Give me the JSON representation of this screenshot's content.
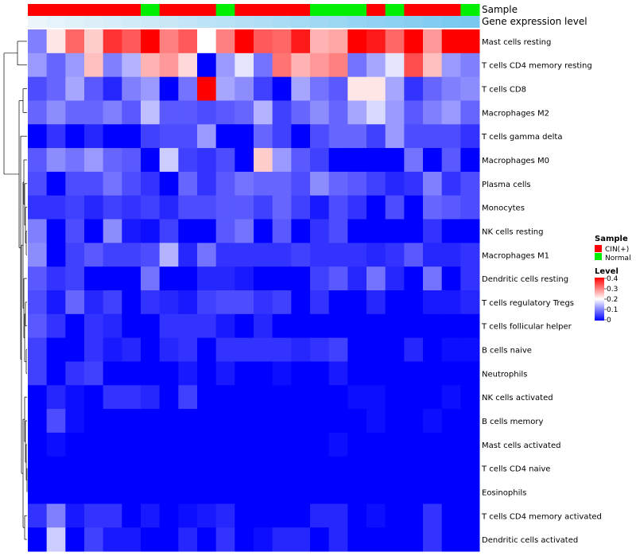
{
  "chart_data": {
    "type": "heatmap",
    "title": "",
    "annotation_tracks": [
      {
        "name": "Sample",
        "values": [
          "CIN(+)",
          "CIN(+)",
          "CIN(+)",
          "CIN(+)",
          "CIN(+)",
          "CIN(+)",
          "Normal",
          "CIN(+)",
          "CIN(+)",
          "CIN(+)",
          "Normal",
          "CIN(+)",
          "CIN(+)",
          "CIN(+)",
          "CIN(+)",
          "Normal",
          "Normal",
          "Normal",
          "CIN(+)",
          "Normal",
          "CIN(+)",
          "CIN(+)",
          "CIN(+)",
          "Normal"
        ]
      },
      {
        "name": "Gene expression level"
      }
    ],
    "rows": [
      "Mast cells resting",
      "T cells CD4 memory resting",
      "T cells CD8",
      "Macrophages M2",
      "T cells gamma delta",
      "Macrophages M0",
      "Plasma cells",
      "Monocytes",
      "NK cells resting",
      "Macrophages M1",
      "Dendritic cells resting",
      "T cells regulatory  Tregs",
      "T cells follicular helper",
      "B cells naive",
      "Neutrophils",
      "NK cells activated",
      "B cells memory",
      "Mast cells activated",
      "T cells CD4 naive",
      "Eosinophils",
      "T cells CD4 memory activated",
      "Dendritic cells activated"
    ],
    "values": [
      [
        0.1,
        0.22,
        0.32,
        0.24,
        0.36,
        0.33,
        0.4,
        0.3,
        0.33,
        0.2,
        0.3,
        0.4,
        0.33,
        0.32,
        0.38,
        0.26,
        0.27,
        0.4,
        0.38,
        0.32,
        0.4,
        0.28,
        0.4,
        0.4
      ],
      [
        0.12,
        0.08,
        0.12,
        0.25,
        0.1,
        0.14,
        0.26,
        0.28,
        0.23,
        0.0,
        0.12,
        0.18,
        0.09,
        0.31,
        0.26,
        0.28,
        0.3,
        0.09,
        0.13,
        0.18,
        0.34,
        0.25,
        0.12,
        0.1
      ],
      [
        0.06,
        0.08,
        0.13,
        0.07,
        0.03,
        0.1,
        0.12,
        0.0,
        0.09,
        0.4,
        0.13,
        0.11,
        0.05,
        0.0,
        0.13,
        0.09,
        0.07,
        0.22,
        0.22,
        0.13,
        0.04,
        0.08,
        0.1,
        0.11
      ],
      [
        0.08,
        0.11,
        0.08,
        0.08,
        0.1,
        0.07,
        0.15,
        0.07,
        0.07,
        0.06,
        0.07,
        0.08,
        0.14,
        0.05,
        0.08,
        0.11,
        0.08,
        0.13,
        0.17,
        0.12,
        0.07,
        0.1,
        0.12,
        0.08
      ],
      [
        0.0,
        0.04,
        0.0,
        0.03,
        0.0,
        0.0,
        0.05,
        0.06,
        0.06,
        0.12,
        0.0,
        0.0,
        0.08,
        0.05,
        0.0,
        0.06,
        0.08,
        0.08,
        0.05,
        0.12,
        0.06,
        0.06,
        0.06,
        0.04
      ],
      [
        0.07,
        0.11,
        0.09,
        0.12,
        0.08,
        0.07,
        0.0,
        0.16,
        0.05,
        0.04,
        0.06,
        0.0,
        0.24,
        0.12,
        0.07,
        0.05,
        0.0,
        0.0,
        0.0,
        0.0,
        0.09,
        0.0,
        0.07,
        0.0
      ],
      [
        0.06,
        0.0,
        0.06,
        0.06,
        0.09,
        0.06,
        0.04,
        0.0,
        0.08,
        0.04,
        0.07,
        0.09,
        0.08,
        0.08,
        0.06,
        0.11,
        0.08,
        0.07,
        0.05,
        0.03,
        0.04,
        0.1,
        0.04,
        0.06
      ],
      [
        0.04,
        0.04,
        0.05,
        0.03,
        0.05,
        0.04,
        0.05,
        0.03,
        0.06,
        0.06,
        0.07,
        0.07,
        0.05,
        0.08,
        0.05,
        0.02,
        0.06,
        0.04,
        0.0,
        0.06,
        0.0,
        0.08,
        0.07,
        0.06
      ],
      [
        0.1,
        0.0,
        0.06,
        0.0,
        0.11,
        0.02,
        0.01,
        0.05,
        0.0,
        0.0,
        0.07,
        0.09,
        0.0,
        0.07,
        0.0,
        0.04,
        0.06,
        0.0,
        0.0,
        0.0,
        0.0,
        0.04,
        0.0,
        0.0
      ],
      [
        0.11,
        0.0,
        0.05,
        0.07,
        0.05,
        0.05,
        0.06,
        0.14,
        0.03,
        0.09,
        0.04,
        0.04,
        0.04,
        0.04,
        0.05,
        0.04,
        0.04,
        0.04,
        0.03,
        0.04,
        0.07,
        0.03,
        0.03,
        0.04
      ],
      [
        0.07,
        0.04,
        0.05,
        0.0,
        0.0,
        0.0,
        0.09,
        0.0,
        0.0,
        0.03,
        0.03,
        0.02,
        0.0,
        0.0,
        0.0,
        0.05,
        0.07,
        0.03,
        0.09,
        0.03,
        0.0,
        0.09,
        0.0,
        0.04
      ],
      [
        0.06,
        0.02,
        0.08,
        0.03,
        0.05,
        0.0,
        0.04,
        0.03,
        0.02,
        0.05,
        0.06,
        0.06,
        0.04,
        0.05,
        0.0,
        0.04,
        0.0,
        0.0,
        0.03,
        0.0,
        0.0,
        0.02,
        0.02,
        0.03
      ],
      [
        0.07,
        0.04,
        0.0,
        0.04,
        0.03,
        0.0,
        0.0,
        0.04,
        0.04,
        0.04,
        0.02,
        0.0,
        0.03,
        0.0,
        0.0,
        0.0,
        0.0,
        0.0,
        0.0,
        0.0,
        0.0,
        0.0,
        0.0,
        0.0
      ],
      [
        0.05,
        0.0,
        0.0,
        0.04,
        0.02,
        0.03,
        0.0,
        0.03,
        0.04,
        0.0,
        0.04,
        0.04,
        0.04,
        0.04,
        0.03,
        0.04,
        0.05,
        0.0,
        0.0,
        0.0,
        0.03,
        0.0,
        0.01,
        0.01
      ],
      [
        0.05,
        0.0,
        0.04,
        0.05,
        0.0,
        0.0,
        0.0,
        0.0,
        0.02,
        0.0,
        0.02,
        0.0,
        0.0,
        0.01,
        0.0,
        0.0,
        0.02,
        0.0,
        0.0,
        0.0,
        0.0,
        0.0,
        0.0,
        0.0
      ],
      [
        0.0,
        0.03,
        0.01,
        0.0,
        0.04,
        0.04,
        0.03,
        0.0,
        0.05,
        0.0,
        0.0,
        0.0,
        0.0,
        0.0,
        0.0,
        0.0,
        0.0,
        0.01,
        0.01,
        0.0,
        0.0,
        0.0,
        0.01,
        0.0
      ],
      [
        0.0,
        0.06,
        0.01,
        0.0,
        0.0,
        0.0,
        0.0,
        0.0,
        0.0,
        0.0,
        0.0,
        0.0,
        0.0,
        0.0,
        0.0,
        0.0,
        0.0,
        0.0,
        0.01,
        0.0,
        0.0,
        0.01,
        0.0,
        0.0
      ],
      [
        0.0,
        0.01,
        0.0,
        0.0,
        0.0,
        0.0,
        0.0,
        0.0,
        0.0,
        0.0,
        0.0,
        0.0,
        0.0,
        0.0,
        0.0,
        0.0,
        0.01,
        0.0,
        0.0,
        0.0,
        0.0,
        0.0,
        0.0,
        0.0
      ],
      [
        0.0,
        0.0,
        0.0,
        0.0,
        0.0,
        0.0,
        0.0,
        0.0,
        0.0,
        0.0,
        0.0,
        0.0,
        0.0,
        0.0,
        0.0,
        0.0,
        0.0,
        0.0,
        0.0,
        0.0,
        0.0,
        0.0,
        0.0,
        0.0
      ],
      [
        0.0,
        0.0,
        0.0,
        0.0,
        0.0,
        0.0,
        0.0,
        0.0,
        0.0,
        0.0,
        0.0,
        0.0,
        0.0,
        0.0,
        0.0,
        0.0,
        0.0,
        0.0,
        0.0,
        0.0,
        0.0,
        0.0,
        0.0,
        0.0
      ],
      [
        0.04,
        0.1,
        0.02,
        0.04,
        0.04,
        0.0,
        0.02,
        0.0,
        0.01,
        0.02,
        0.03,
        0.0,
        0.0,
        0.0,
        0.0,
        0.03,
        0.03,
        0.0,
        0.01,
        0.0,
        0.0,
        0.04,
        0.0,
        0.0
      ],
      [
        0.0,
        0.16,
        0.0,
        0.05,
        0.02,
        0.02,
        0.0,
        0.0,
        0.03,
        0.0,
        0.04,
        0.0,
        0.01,
        0.03,
        0.03,
        0.0,
        0.03,
        0.0,
        0.0,
        0.0,
        0.0,
        0.04,
        0.0,
        0.0
      ]
    ],
    "value_range": [
      0,
      0.4
    ],
    "colorscale": [
      "#0000ff",
      "#ffffff",
      "#ff0000"
    ],
    "legend": {
      "sample_title": "Sample",
      "sample_items": [
        {
          "label": "CIN(+)",
          "color": "#ff0000"
        },
        {
          "label": "Normal",
          "color": "#00ee00"
        }
      ],
      "level_title": "Level",
      "level_ticks": [
        "0.4",
        "0.3",
        "0.2",
        "0.1",
        "0"
      ]
    },
    "dendrogram": "rows clustered (hierarchical)"
  }
}
